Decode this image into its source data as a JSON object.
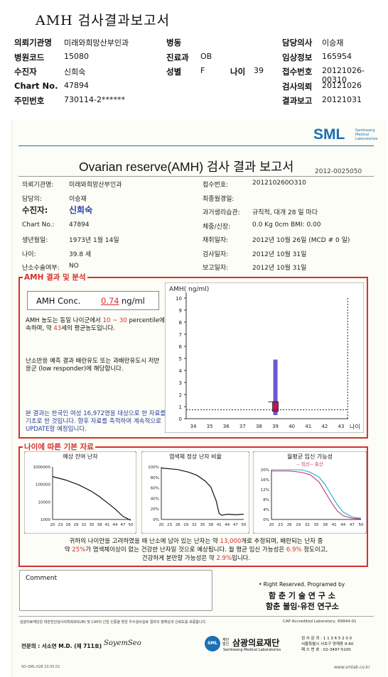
{
  "header": {
    "title": "AMH 검사결과보고서",
    "left": [
      {
        "label": "의뢰기관명",
        "value": "미래와희망산부인과"
      },
      {
        "label": "병원코드",
        "value": "15080"
      },
      {
        "label": "수진자",
        "value": "신희숙"
      },
      {
        "label": "Chart No.",
        "value": "47894"
      },
      {
        "label": "주민번호",
        "value": "730114-2******"
      }
    ],
    "mid": [
      {
        "label": "병동",
        "value": ""
      },
      {
        "label": "진료과",
        "value": "OB"
      },
      {
        "label": "성별",
        "value": "F"
      }
    ],
    "age_label": "나이",
    "age_value": "39",
    "right": [
      {
        "label": "담당의사",
        "value": "이승재"
      },
      {
        "label": "임상정보",
        "value": "165954"
      },
      {
        "label": "접수번호",
        "value": "20121026-00310"
      },
      {
        "label": "검사의뢰",
        "value": "20121026"
      },
      {
        "label": "결과보고",
        "value": "20121031"
      }
    ]
  },
  "report": {
    "logo": "SML",
    "logo_sub1": "Samkwang",
    "logo_sub2": "Medical",
    "logo_sub3": "Laboratories",
    "title": "Ovarian reserve(AMH) 검사 결과 보고서",
    "doc_no": "2012-0025050",
    "left_fields": [
      {
        "label": "의뢰기관명:",
        "value": "미래와희망산부인과"
      },
      {
        "label": "담당의:",
        "value": "이승재"
      },
      {
        "label": "수진자:",
        "value": "신희숙"
      },
      {
        "label": "Chart No.:",
        "value": "47894"
      },
      {
        "label": "생년월일:",
        "value": "1973년 1월 14일"
      },
      {
        "label": "나이:",
        "value": "39.8 세"
      },
      {
        "label": "난소수술여부:",
        "value": "NO"
      }
    ],
    "right_fields": [
      {
        "label": "접수번호:",
        "value": "201210260O310"
      },
      {
        "label": "최종월경일:",
        "value": ""
      },
      {
        "label": "과거생리습관:",
        "value": "규칙적, 대개   28 일 마다"
      },
      {
        "label": "체중/신장:",
        "value": "0.0 Kg        0cm    BMI:    0.00"
      },
      {
        "label": "채취일자:",
        "value": "2012년 10월 26일 (MCD # 0 일)"
      },
      {
        "label": "검사일자:",
        "value": "2012년 10월 31일"
      },
      {
        "label": "보고일자:",
        "value": "2012년 10월 31일"
      }
    ],
    "amh_section_title": "AMH 결과 및 분석",
    "amh_label": "AMH Conc.",
    "amh_value": "0.74",
    "amh_unit": "ng/ml",
    "analysis1_a": "AMH 농도는 동일 나이군에서",
    "analysis1_b": "10 ~ 30",
    "analysis1_c": "percentile에 속하며, 약",
    "analysis1_d": "43",
    "analysis1_e": "세의 평균농도입니다.",
    "analysis2": "난소반응 예측 결과 배란유도 또는 과배란유도시 저반응군 (low responder)에 해당합니다.",
    "note": "본 결과는 한국인 여성 16,972명을 대상으로 한 자료를 기초로 한 것입니다. 향후 자료를 축적하여 계속적으로 UPDATE할 예정입니다.",
    "ref_section_title": "나이에 따른 기본 자료",
    "mini_titles": [
      "예상 잔여 난자",
      "염색체 정상 난자 비율",
      "월평균 임신 가능성"
    ],
    "mini3_legend": "-- 임신-- 출산",
    "summary1_a": "귀하의 나이만을 고려하였을 때 난소에 남아 있는 난자는 약",
    "summary1_b": "13,000",
    "summary1_c": "개로 추정되며, 배란되는 난자 중",
    "summary2_a": "약",
    "summary2_b": "25%",
    "summary2_c": "가 염색체이상이 없는 건강한 난자일 것으로 예상됩니다. 월 평균 임신 가능성은",
    "summary2_d": "6.9%",
    "summary2_e": "정도이고,",
    "summary3_a": "건강하게 분만할 가능성은 약",
    "summary3_b": "2.9%",
    "summary3_c": "입니다.",
    "comment_label": "Comment",
    "rights": "• Right Reserved. Programed by",
    "institute1": "함 춘 기 술 연 구 소",
    "institute2": "함춘 불임·유전 연구소",
    "fine_print": "삼광의료재단은 대한진단검사의학회(KSLM) 및 CAP의 신임 인증을 받은 우수검사실로 결과의 정확성과 신뢰도를 보증합니다.",
    "cap": "CAP Accredited Laboratory, 69944-01",
    "specialist": "전문의 : 서소연 M.D. (제 711호)",
    "signature": "SoyemSeo",
    "foundation": "삼광의료재단",
    "foundation_prefix": "재단법인",
    "foundation_en": "Samkwang Medical Laboratories",
    "contact1": "검 사 문 의 : 1 1 3 6 5 2 0 0",
    "contact2": "서울특별시 서초구 양재동 9-60",
    "contact3": "패 스 번 호 : 02-3497-5100",
    "form_no": "SO-SML-028 10.05.01",
    "website": "www.smlab.co.kr"
  },
  "chart_data": [
    {
      "type": "bar",
      "title": "",
      "ylabel": "AMH( ng/ml)",
      "xlabel": "나이",
      "x": [
        34,
        35,
        36,
        37,
        38,
        39,
        40,
        41,
        42,
        43
      ],
      "ylim": [
        0,
        10
      ],
      "yticks": [
        0,
        1,
        2,
        3,
        4,
        5,
        6,
        7,
        8,
        9,
        10
      ],
      "range_bar": {
        "x": 39,
        "low": 0.3,
        "high": 4.9
      },
      "iqr_box": {
        "x": 39,
        "low": 0.6,
        "high": 1.4
      },
      "patient_value": 0.74,
      "median": 1.4,
      "vline_x": 43.4
    },
    {
      "type": "line",
      "title": "예상 잔여 난자",
      "yscale": "log",
      "yticks": [
        1000,
        10000,
        100000,
        1000000
      ],
      "xticks": [
        "20",
        "23",
        "26",
        "29",
        "32",
        "35",
        "38",
        "41",
        "44",
        "47",
        "50"
      ],
      "x": [
        20,
        25,
        30,
        35,
        38,
        41,
        44,
        47,
        50
      ],
      "y": [
        280000,
        180000,
        95000,
        40000,
        20000,
        9000,
        4000,
        1500,
        900
      ]
    },
    {
      "type": "line",
      "title": "염색체 정상 난자 비율",
      "ytick_labels": [
        "0%",
        "20%",
        "40%",
        "60%",
        "80%",
        "100%"
      ],
      "xticks": [
        "20",
        "23",
        "26",
        "29",
        "32",
        "35",
        "38",
        "41",
        "44",
        "47",
        "50"
      ],
      "x": [
        20,
        26,
        30,
        33,
        36,
        38,
        40,
        41,
        42,
        44,
        47,
        50
      ],
      "y": [
        98,
        95,
        90,
        84,
        73,
        62,
        35,
        12,
        8,
        10,
        9,
        10
      ]
    },
    {
      "type": "line",
      "title": "월평균 임신 가능성",
      "ytick_labels": [
        "0%",
        "4%",
        "8%",
        "12%",
        "16%",
        "20%"
      ],
      "xticks": [
        "20",
        "23",
        "26",
        "29",
        "32",
        "35",
        "38",
        "41",
        "44",
        "47",
        "50"
      ],
      "series": [
        {
          "x": [
            20,
            26,
            30,
            33,
            36,
            38,
            40,
            42,
            44,
            47,
            50
          ],
          "y": [
            20,
            20,
            20,
            19,
            17,
            14,
            10,
            6,
            3,
            1,
            0.5
          ]
        },
        {
          "x": [
            20,
            26,
            30,
            33,
            36,
            38,
            40,
            42,
            44,
            47,
            50
          ],
          "y": [
            19.5,
            19.5,
            19,
            18,
            15,
            11,
            7,
            3.5,
            1.5,
            0.5,
            0.2
          ]
        }
      ],
      "colors": [
        "#1fa7d8",
        "#c0336b"
      ]
    }
  ]
}
